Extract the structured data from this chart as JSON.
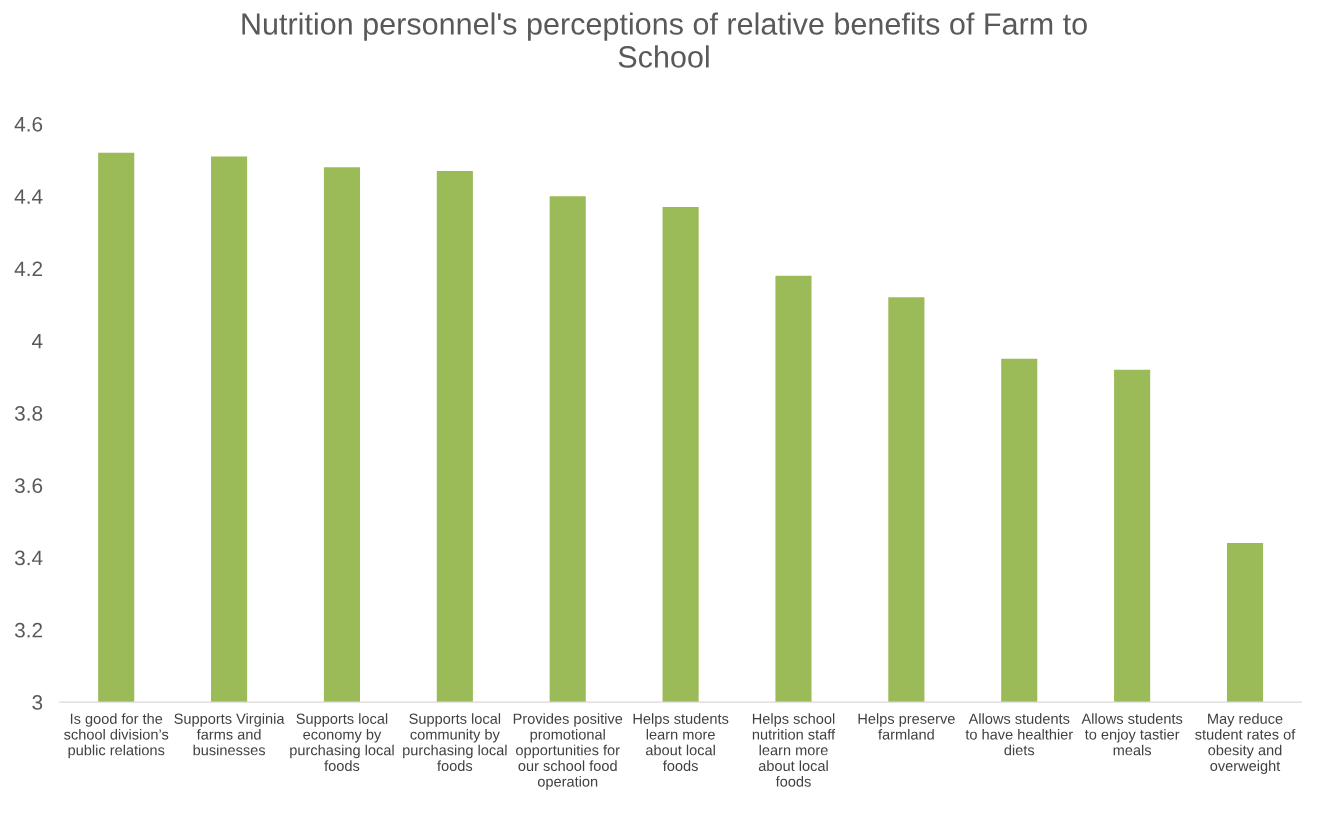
{
  "chart_data": {
    "type": "bar",
    "title": "Nutrition personnel's perceptions of relative benefits of Farm to\nSchool",
    "categories": [
      "Is good for the\nschool division’s\npublic relations",
      "Supports Virginia\nfarms and\nbusinesses",
      "Supports local\neconomy by\npurchasing local\nfoods",
      "Supports local\ncommunity by\npurchasing local\nfoods",
      "Provides positive\npromotional\nopportunities for\nour school food\noperation",
      "Helps students\nlearn more\nabout local\nfoods",
      "Helps school\nnutrition staff\nlearn more\nabout local\nfoods",
      "Helps preserve\nfarmland",
      "Allows students\nto have healthier\ndiets",
      "Allows students\nto enjoy tastier\nmeals",
      "May reduce\nstudent rates of\nobesity and\noverweight"
    ],
    "values": [
      4.52,
      4.51,
      4.48,
      4.47,
      4.4,
      4.37,
      4.18,
      4.12,
      3.95,
      3.92,
      3.44
    ],
    "color": "#9bbb59",
    "ylim": [
      3,
      4.6
    ],
    "yticks": [
      3,
      3.2,
      3.4,
      3.6,
      3.8,
      4,
      4.2,
      4.4,
      4.6
    ],
    "grid": false
  }
}
